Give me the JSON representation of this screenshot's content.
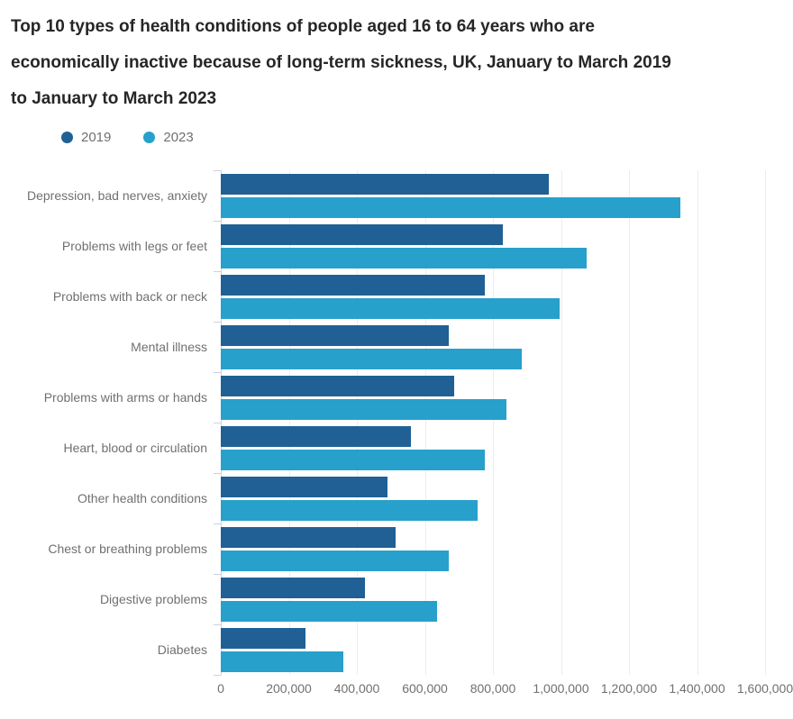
{
  "title": "Top 10 types of health conditions of people aged 16 to 64 years who are economically inactive because of long-term sickness, UK, January to March 2019 to January to March 2023",
  "legend": {
    "items": [
      {
        "label": "2019",
        "color": "#206095"
      },
      {
        "label": "2023",
        "color": "#27A0CC"
      }
    ]
  },
  "colors": {
    "series_2019": "#206095",
    "series_2023": "#27A0CC",
    "title_text": "#262626",
    "label_text": "#707071",
    "gridline": "#ededed",
    "axis": "#c9d2e2",
    "background": "#ffffff"
  },
  "chart_data": {
    "type": "bar",
    "orientation": "horizontal",
    "title": "Top 10 types of health conditions of people aged 16 to 64 years who are economically inactive because of long-term sickness, UK, January to March 2019 to January to March 2023",
    "xlabel": "",
    "ylabel": "",
    "xlim": [
      0,
      1600000
    ],
    "grid": "vertical",
    "legend_position": "top-left",
    "categories": [
      "Depression, bad nerves, anxiety",
      "Problems with legs or feet",
      "Problems with back or neck",
      "Mental illness",
      "Problems with arms or hands",
      "Heart, blood or circulation",
      "Other health conditions",
      "Chest or breathing problems",
      "Digestive problems",
      "Diabetes"
    ],
    "series": [
      {
        "name": "2019",
        "color": "#206095",
        "values": [
          965000,
          830000,
          775000,
          670000,
          685000,
          560000,
          490000,
          515000,
          425000,
          250000
        ]
      },
      {
        "name": "2023",
        "color": "#27A0CC",
        "values": [
          1350000,
          1075000,
          995000,
          885000,
          840000,
          775000,
          755000,
          670000,
          635000,
          360000
        ]
      }
    ],
    "xticks": [
      0,
      200000,
      400000,
      600000,
      800000,
      1000000,
      1200000,
      1400000,
      1600000
    ],
    "xtick_labels": [
      "0",
      "200,000",
      "400,000",
      "600,000",
      "800,000",
      "1,000,000",
      "1,200,000",
      "1,400,000",
      "1,600,000"
    ]
  }
}
